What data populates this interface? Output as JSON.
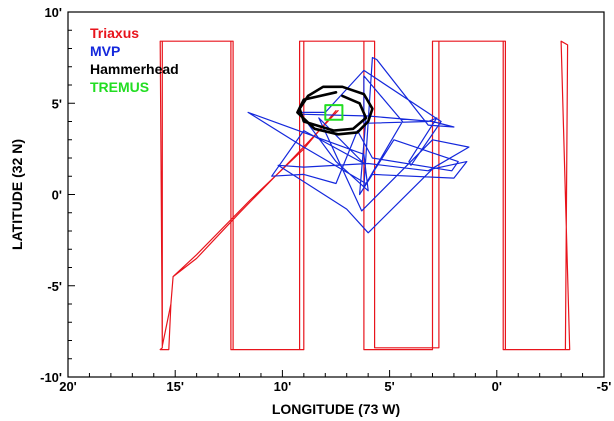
{
  "chart_data": {
    "type": "line",
    "xlabel": "LONGITUDE (73 W)",
    "ylabel": "LATITUDE (32 N)",
    "xlim": [
      20,
      -5
    ],
    "ylim": [
      -10,
      10
    ],
    "x_ticks": [
      20,
      15,
      10,
      5,
      0,
      -5
    ],
    "y_ticks": [
      10,
      5,
      0,
      -5,
      -10
    ],
    "x_tick_labels": [
      "20'",
      "15'",
      "10'",
      "5'",
      "0'",
      "-5'"
    ],
    "y_tick_labels": [
      "10'",
      "5'",
      "0'",
      "-5'",
      "-10'"
    ],
    "x_minor_step": 1,
    "y_minor_step": 1,
    "legend_position": "top-left",
    "series": [
      {
        "name": "Triaxus",
        "color": "#e8141c",
        "x": [
          7.4,
          9.5,
          12.0,
          14.0,
          15.1,
          15.2,
          15.6,
          15.6,
          12.4,
          12.4,
          9.2,
          9.2,
          6.2,
          6.2,
          3.0,
          3.0,
          -0.4,
          -0.4,
          -3.2,
          -3.3,
          -3.0,
          -3.4,
          -0.3,
          -0.3,
          2.7,
          2.7,
          5.7,
          5.7,
          9.0,
          9.0,
          12.3,
          12.3,
          15.7,
          15.6,
          15.7,
          15.3,
          15.2,
          15.1,
          14.0,
          11.5,
          9.0,
          7.5
        ],
        "y": [
          4.6,
          2.0,
          -1.0,
          -3.5,
          -4.5,
          -6.0,
          -8.3,
          8.4,
          8.4,
          -8.5,
          -8.5,
          8.4,
          8.4,
          -8.5,
          -8.5,
          8.4,
          8.4,
          -8.5,
          -8.5,
          8.2,
          8.4,
          -8.5,
          -8.5,
          8.4,
          8.4,
          -8.4,
          -8.4,
          8.4,
          8.4,
          -8.5,
          -8.5,
          8.4,
          8.4,
          -8.4,
          -8.5,
          -8.5,
          -6.0,
          -4.5,
          -3.3,
          -0.3,
          2.5,
          4.6
        ]
      },
      {
        "name": "MVP",
        "color": "#1428dc",
        "x": [
          9.2,
          6.0,
          3.0,
          2.0,
          3.2,
          5.6,
          5.8,
          6.2,
          4.4,
          6.2,
          6.2,
          3.2,
          2.8,
          4.1,
          4.0,
          2.6,
          6.2,
          8.0,
          9.2,
          7.5,
          6.0,
          6.2,
          11.6,
          9.0,
          6.1,
          4.8,
          1.8,
          2.1,
          5.8,
          6.5,
          7.5,
          9.0,
          10.5,
          9.0,
          6.2,
          8.3,
          6.3,
          3.0,
          1.3,
          3.2,
          6.0,
          9.0,
          10.2,
          7.0,
          6.0,
          3.0,
          1.4,
          2.0,
          5.8,
          6.4,
          6.1
        ],
        "y": [
          4.4,
          4.3,
          4.0,
          3.7,
          3.8,
          7.4,
          7.5,
          0.4,
          4.0,
          6.5,
          3.9,
          4.0,
          4.2,
          1.8,
          1.6,
          4.0,
          6.8,
          4.5,
          4.5,
          1.8,
          0.2,
          2.2,
          4.5,
          2.6,
          0.6,
          3.0,
          1.8,
          1.3,
          2.0,
          3.5,
          0.6,
          1.1,
          1.0,
          3.5,
          1.7,
          4.2,
          -0.9,
          3.0,
          2.6,
          1.3,
          1.7,
          1.5,
          1.6,
          -0.8,
          -2.1,
          1.4,
          1.8,
          0.9,
          1.1,
          0.0,
          4.2
        ]
      },
      {
        "name": "Hammerhead",
        "color": "#000000",
        "x": [
          7.5,
          9.0,
          9.3,
          8.5,
          7.4,
          6.5,
          6.0,
          5.8,
          6.2,
          7.2,
          8.1,
          8.8,
          9.2,
          9.0,
          7.6,
          6.7,
          6.1,
          6.4,
          7.2
        ],
        "y": [
          5.6,
          5.2,
          4.5,
          3.6,
          3.3,
          3.4,
          4.0,
          4.7,
          5.5,
          5.9,
          5.9,
          5.4,
          4.7,
          4.0,
          3.5,
          3.6,
          4.2,
          5.0,
          5.4
        ]
      },
      {
        "name": "TREMUS",
        "color": "#22dd22",
        "x": [
          8.0,
          7.2,
          7.2,
          8.0,
          8.0
        ],
        "y": [
          4.1,
          4.1,
          4.9,
          4.9,
          4.1
        ]
      }
    ]
  }
}
